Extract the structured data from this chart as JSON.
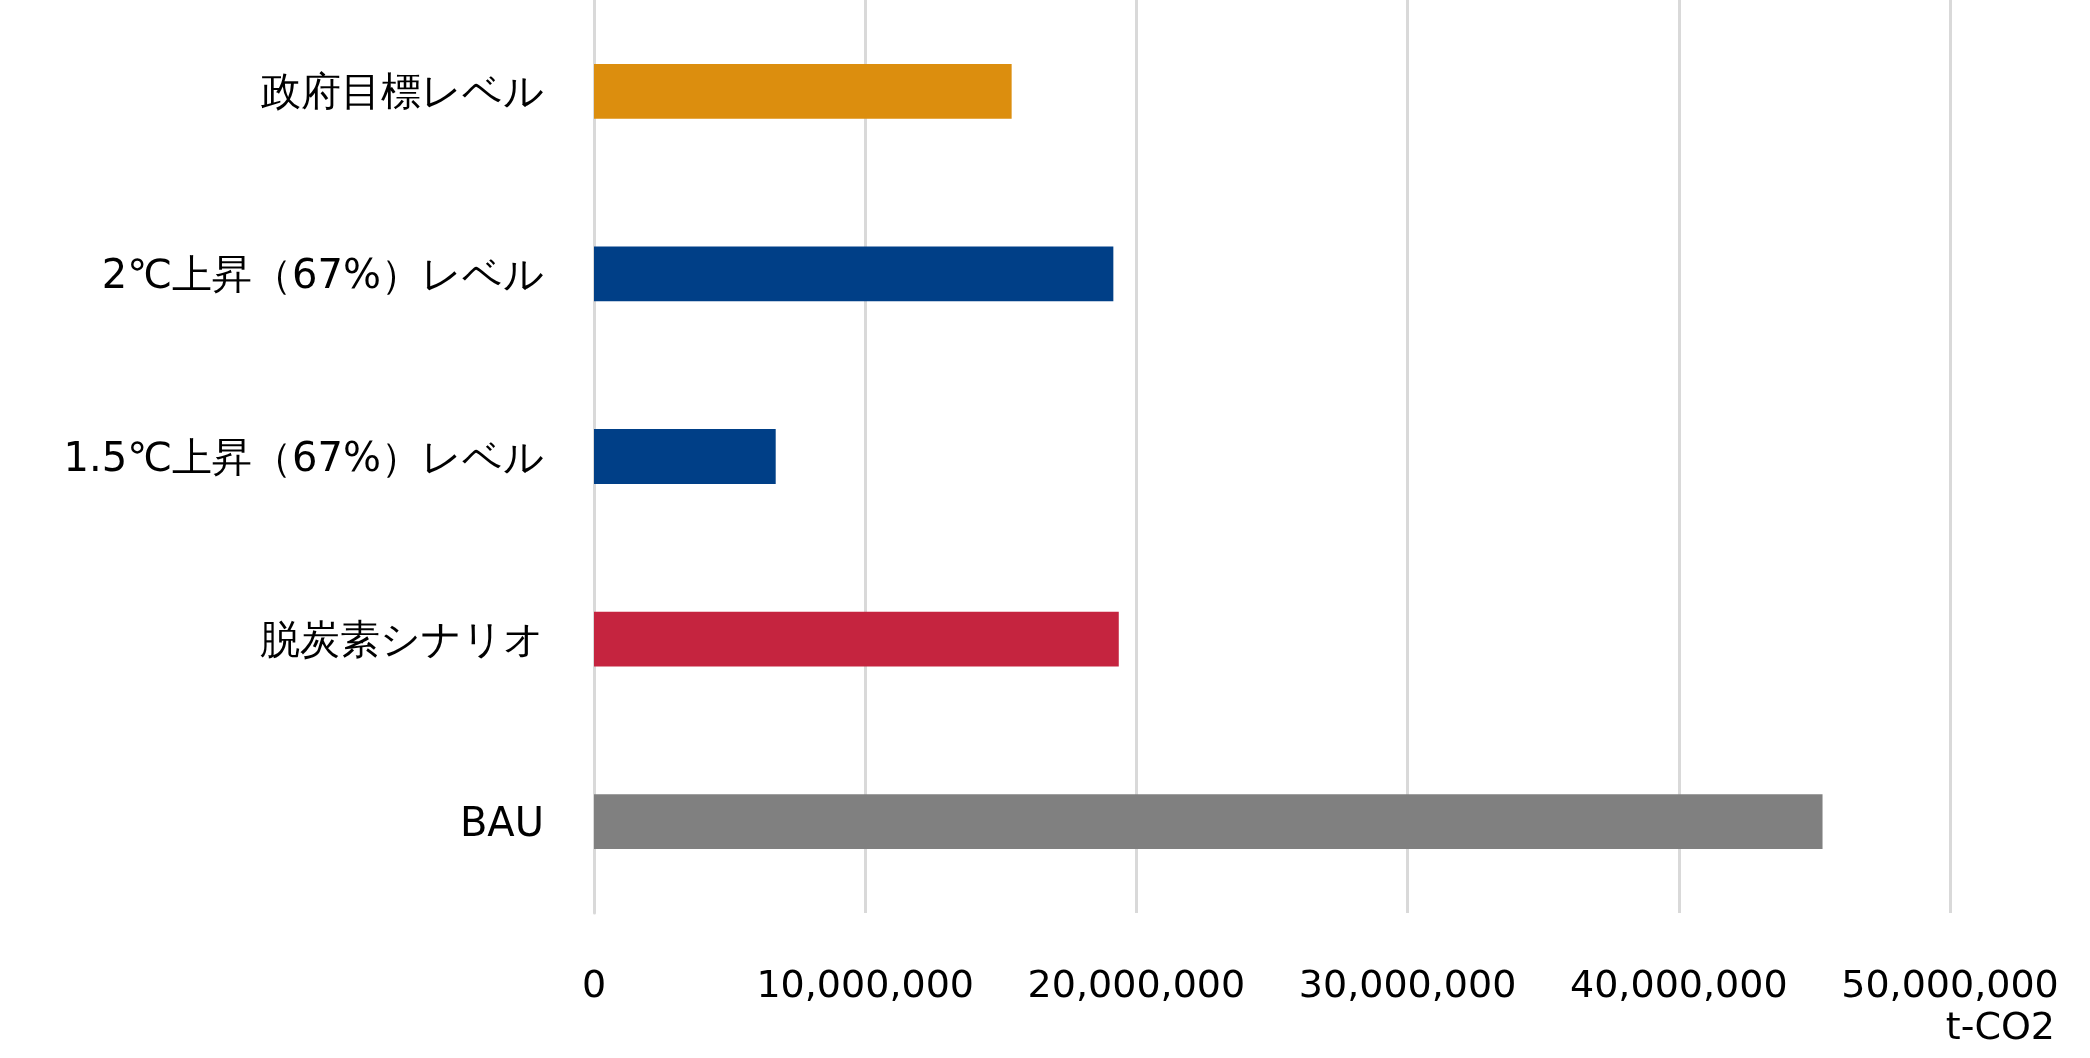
{
  "chart_data": {
    "type": "bar",
    "orientation": "horizontal",
    "xlabel": "t-CO2",
    "categories": [
      "政府目標レベル",
      "2℃上昇（67%）レベル",
      "1.5℃上昇（67%）レベル",
      "脱炭素シナリオ",
      "BAU"
    ],
    "values": [
      15400000,
      19150000,
      6700000,
      19350000,
      45300000
    ],
    "colors": [
      "#dc8e0e",
      "#003f87",
      "#003f87",
      "#c5243f",
      "#808080"
    ],
    "xlim": [
      0,
      50000000
    ],
    "xticks": [
      0,
      {
        "value": 10000000,
        "label": "10,000,000"
      },
      {
        "value": 20000000,
        "label": "20,000,000"
      },
      {
        "value": 30000000,
        "label": "30,000,000"
      },
      {
        "value": 40000000,
        "label": "40,000,000"
      },
      {
        "value": 50000000,
        "label": "50,000,000"
      }
    ],
    "grid": "x"
  }
}
